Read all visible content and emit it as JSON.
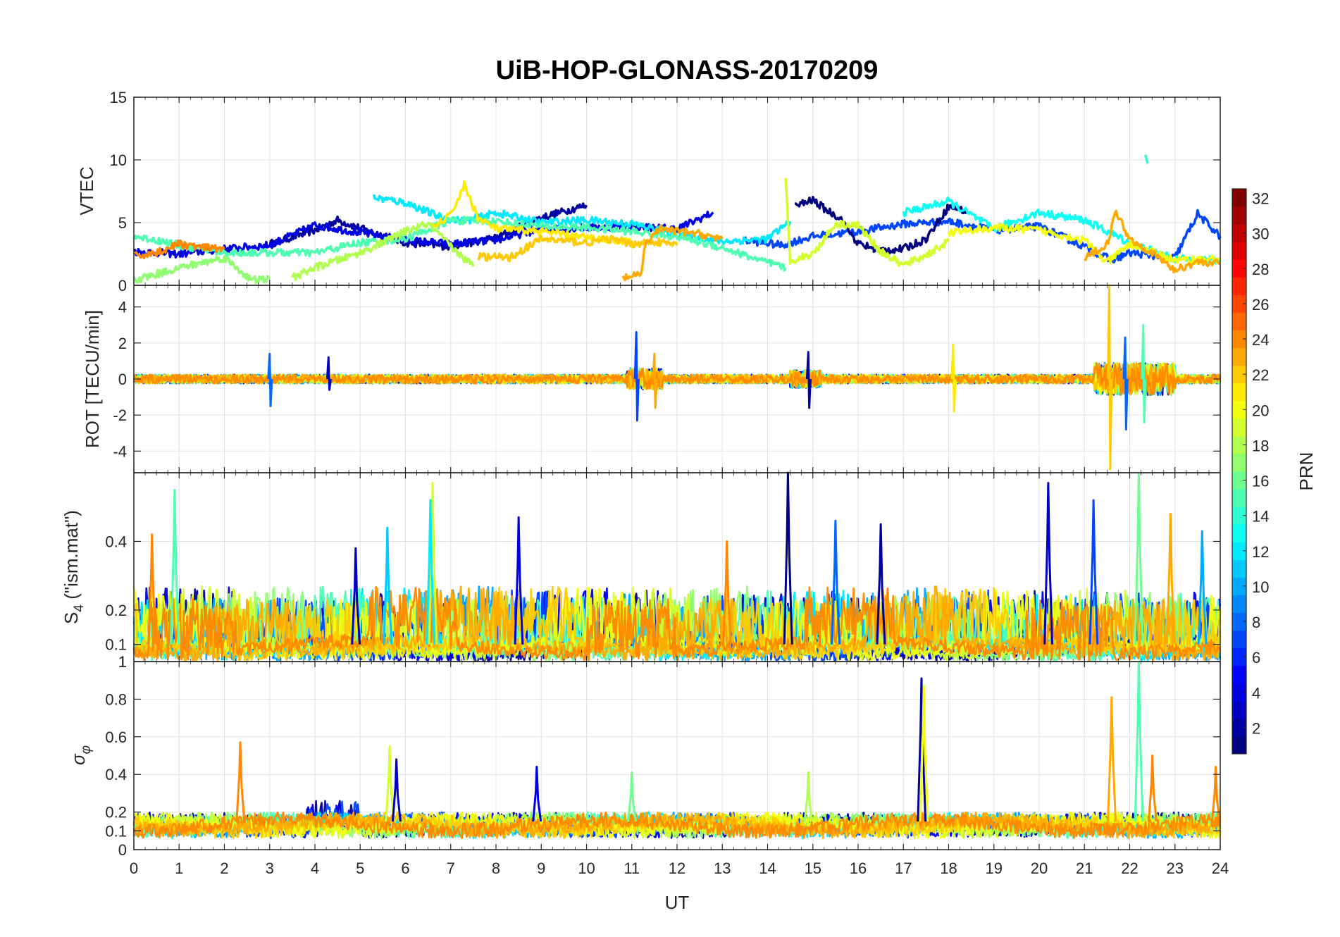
{
  "chart_data": {
    "type": "line",
    "title": "UiB-HOP-GLONASS-20170209",
    "xlabel": "UT",
    "xlim": [
      0,
      24
    ],
    "xticks": [
      0,
      1,
      2,
      3,
      4,
      5,
      6,
      7,
      8,
      9,
      10,
      11,
      12,
      13,
      14,
      15,
      16,
      17,
      18,
      19,
      20,
      21,
      22,
      23,
      24
    ],
    "grid": true,
    "panels": [
      {
        "id": "vtec",
        "ylabel": "VTEC",
        "ylim": [
          0,
          15
        ],
        "yticks": [
          0,
          5,
          10,
          15
        ],
        "series_hint": [
          {
            "prn": 2,
            "points": [
              [
                3.0,
                3.3
              ],
              [
                4.0,
                4.4
              ],
              [
                4.5,
                5.2
              ],
              [
                5.2,
                4.3
              ],
              [
                6.0,
                3.4
              ],
              [
                7.0,
                3.1
              ],
              [
                8.0,
                3.8
              ],
              [
                9.0,
                5.4
              ],
              [
                10.0,
                6.4
              ]
            ]
          },
          {
            "prn": 4,
            "points": [
              [
                0.0,
                2.7
              ],
              [
                1.0,
                2.5
              ],
              [
                2.0,
                2.9
              ],
              [
                3.0,
                3.2
              ],
              [
                4.0,
                4.8
              ],
              [
                5.0,
                4.2
              ],
              [
                6.0,
                3.6
              ],
              [
                7.0,
                3.3
              ],
              [
                8.0,
                3.6
              ],
              [
                9.0,
                4.5
              ],
              [
                10.0,
                4.6
              ],
              [
                11.0,
                4.7
              ],
              [
                12.0,
                4.5
              ],
              [
                12.8,
                5.8
              ]
            ]
          },
          {
            "prn": 7,
            "points": [
              [
                13.5,
                3.6
              ],
              [
                14.3,
                3.2
              ],
              [
                15.0,
                3.9
              ],
              [
                16.0,
                4.3
              ],
              [
                17.0,
                4.9
              ],
              [
                18.0,
                5.1
              ],
              [
                19.0,
                4.4
              ],
              [
                20.0,
                4.7
              ],
              [
                21.0,
                3.1
              ],
              [
                21.6,
                2.0
              ],
              [
                22.0,
                2.6
              ],
              [
                23.0,
                2.2
              ],
              [
                23.5,
                5.7
              ],
              [
                24.0,
                3.9
              ]
            ]
          },
          {
            "prn": 1,
            "points": [
              [
                14.6,
                6.3
              ],
              [
                15.0,
                6.8
              ],
              [
                15.3,
                6.0
              ],
              [
                15.6,
                5.4
              ],
              [
                16.0,
                3.3
              ],
              [
                16.5,
                2.8
              ],
              [
                17.0,
                2.9
              ],
              [
                17.5,
                3.7
              ],
              [
                18.0,
                6.3
              ],
              [
                18.4,
                5.9
              ]
            ]
          },
          {
            "prn": 12,
            "points": [
              [
                5.3,
                7.0
              ],
              [
                6.0,
                6.6
              ],
              [
                6.8,
                5.4
              ],
              [
                7.3,
                5.1
              ],
              [
                8.0,
                5.8
              ],
              [
                9.0,
                5.0
              ],
              [
                10.0,
                5.2
              ],
              [
                11.0,
                4.9
              ],
              [
                12.0,
                4.1
              ],
              [
                13.0,
                3.5
              ],
              [
                14.0,
                3.7
              ],
              [
                14.5,
                5.1
              ]
            ]
          },
          {
            "prn": 13,
            "points": [
              [
                17.0,
                5.8
              ],
              [
                18.0,
                6.7
              ],
              [
                19.0,
                4.5
              ],
              [
                20.0,
                5.8
              ],
              [
                21.0,
                5.2
              ],
              [
                22.0,
                3.4
              ],
              [
                23.0,
                2.1
              ],
              [
                24.0,
                2.0
              ]
            ]
          },
          {
            "prn": 15,
            "points": [
              [
                0.0,
                3.9
              ],
              [
                0.5,
                3.6
              ],
              [
                1.0,
                3.2
              ],
              [
                2.0,
                2.6
              ],
              [
                3.0,
                2.6
              ],
              [
                4.0,
                2.6
              ],
              [
                4.5,
                3.0
              ],
              [
                5.0,
                3.4
              ],
              [
                6.0,
                3.7
              ],
              [
                7.0,
                5.2
              ],
              [
                8.0,
                5.1
              ],
              [
                9.0,
                4.7
              ],
              [
                10.0,
                4.6
              ],
              [
                11.0,
                4.3
              ],
              [
                12.0,
                3.9
              ],
              [
                13.0,
                3.0
              ],
              [
                14.0,
                1.8
              ],
              [
                14.4,
                1.4
              ]
            ]
          },
          {
            "prn": 17,
            "points": [
              [
                0.0,
                0.4
              ],
              [
                0.5,
                0.9
              ],
              [
                1.0,
                1.4
              ],
              [
                1.5,
                1.8
              ],
              [
                2.0,
                2.2
              ],
              [
                2.4,
                1.0
              ],
              [
                2.6,
                0.4
              ],
              [
                3.0,
                0.5
              ]
            ]
          },
          {
            "prn": 18,
            "points": [
              [
                3.5,
                0.6
              ],
              [
                4.0,
                1.4
              ],
              [
                4.5,
                2.0
              ],
              [
                5.0,
                2.6
              ],
              [
                5.5,
                3.4
              ],
              [
                6.0,
                4.3
              ],
              [
                6.5,
                4.9
              ],
              [
                7.0,
                3.1
              ],
              [
                7.5,
                1.5
              ]
            ]
          },
          {
            "prn": 19,
            "points": [
              [
                14.4,
                8.5
              ],
              [
                14.5,
                2.0
              ],
              [
                15.0,
                2.5
              ],
              [
                15.5,
                4.9
              ],
              [
                16.0,
                4.8
              ],
              [
                16.5,
                2.7
              ],
              [
                17.0,
                1.6
              ],
              [
                17.5,
                2.4
              ],
              [
                18.0,
                3.5
              ]
            ]
          },
          {
            "prn": 21,
            "points": [
              [
                6.6,
                4.6
              ],
              [
                7.0,
                5.6
              ],
              [
                7.3,
                8.0
              ],
              [
                7.6,
                5.4
              ],
              [
                8.0,
                4.5
              ],
              [
                9.0,
                4.3
              ],
              [
                10.0,
                3.8
              ],
              [
                11.0,
                3.5
              ]
            ]
          },
          {
            "prn": 20,
            "points": [
              [
                18.0,
                4.2
              ],
              [
                19.0,
                4.6
              ],
              [
                20.0,
                4.4
              ],
              [
                21.0,
                3.6
              ],
              [
                21.5,
                1.8
              ],
              [
                22.0,
                3.3
              ],
              [
                23.0,
                2.0
              ],
              [
                24.0,
                2.1
              ]
            ]
          },
          {
            "prn": 22,
            "points": [
              [
                7.6,
                2.3
              ],
              [
                8.3,
                2.2
              ],
              [
                9.0,
                3.7
              ],
              [
                10.0,
                3.4
              ],
              [
                10.5,
                3.7
              ],
              [
                11.0,
                3.3
              ],
              [
                11.5,
                3.5
              ],
              [
                12.0,
                3.2
              ]
            ]
          },
          {
            "prn": 23,
            "points": [
              [
                10.8,
                0.6
              ],
              [
                11.2,
                0.8
              ],
              [
                11.3,
                3.3
              ],
              [
                11.6,
                4.5
              ],
              [
                12.0,
                4.3
              ],
              [
                12.5,
                4.1
              ],
              [
                13.0,
                3.7
              ]
            ]
          },
          {
            "prn": 24,
            "points": [
              [
                0.0,
                2.3
              ],
              [
                0.5,
                2.6
              ],
              [
                1.0,
                3.3
              ],
              [
                1.5,
                3.0
              ],
              [
                2.0,
                2.9
              ]
            ]
          },
          {
            "prn": 23,
            "points": [
              [
                21.0,
                2.1
              ],
              [
                21.5,
                3.3
              ],
              [
                21.7,
                5.9
              ],
              [
                22.0,
                3.7
              ],
              [
                22.5,
                2.6
              ],
              [
                23.0,
                1.2
              ],
              [
                23.5,
                1.9
              ],
              [
                24.0,
                1.7
              ]
            ]
          },
          {
            "prn": 14,
            "points": [
              [
                22.35,
                10.4
              ],
              [
                22.4,
                9.7
              ]
            ]
          }
        ]
      },
      {
        "id": "rot",
        "ylabel": "ROT [TECU/min]",
        "ylim": [
          -5.2,
          5.2
        ],
        "yticks": [
          -4,
          -2,
          0,
          2,
          4
        ],
        "spikes": [
          {
            "t": 3.0,
            "min": -1.5,
            "max": 1.4,
            "prn": 8
          },
          {
            "t": 4.3,
            "min": -0.6,
            "max": 1.2,
            "prn": 3
          },
          {
            "t": 11.1,
            "min": -2.3,
            "max": 2.6,
            "prn": 7
          },
          {
            "t": 11.5,
            "min": -1.6,
            "max": 1.4,
            "prn": 23
          },
          {
            "t": 14.9,
            "min": -1.6,
            "max": 1.5,
            "prn": 2
          },
          {
            "t": 18.1,
            "min": -1.8,
            "max": 1.9,
            "prn": 21
          },
          {
            "t": 21.55,
            "min": -5.0,
            "max": 5.2,
            "prn": 22
          },
          {
            "t": 21.9,
            "min": -2.8,
            "max": 2.3,
            "prn": 8
          },
          {
            "t": 22.3,
            "min": -2.4,
            "max": 3.0,
            "prn": 15
          }
        ]
      },
      {
        "id": "s4",
        "ylabel_main": "S",
        "ylabel_sub": "4",
        "ylabel_rest": " (\"ism.mat\")",
        "ylim": [
          0.05,
          0.6
        ],
        "yticks": [
          0.1,
          0.2,
          0.4
        ],
        "top_label": "1",
        "spikes": [
          {
            "t": 0.4,
            "v": 0.42,
            "prn": 24
          },
          {
            "t": 0.9,
            "v": 0.55,
            "prn": 15
          },
          {
            "t": 4.9,
            "v": 0.38,
            "prn": 3
          },
          {
            "t": 5.6,
            "v": 0.44,
            "prn": 11
          },
          {
            "t": 6.6,
            "v": 0.57,
            "prn": 19
          },
          {
            "t": 6.55,
            "v": 0.52,
            "prn": 12
          },
          {
            "t": 8.5,
            "v": 0.47,
            "prn": 4
          },
          {
            "t": 13.1,
            "v": 0.4,
            "prn": 24
          },
          {
            "t": 14.45,
            "v": 0.6,
            "prn": 1
          },
          {
            "t": 15.5,
            "v": 0.46,
            "prn": 8
          },
          {
            "t": 16.5,
            "v": 0.45,
            "prn": 2
          },
          {
            "t": 20.2,
            "v": 0.57,
            "prn": 3
          },
          {
            "t": 21.2,
            "v": 0.52,
            "prn": 7
          },
          {
            "t": 22.2,
            "v": 0.6,
            "prn": 16
          },
          {
            "t": 22.9,
            "v": 0.48,
            "prn": 23
          },
          {
            "t": 23.6,
            "v": 0.43,
            "prn": 10
          }
        ]
      },
      {
        "id": "sigma",
        "ylabel": "σφ",
        "ylim": [
          0,
          1
        ],
        "yticks": [
          0,
          0.1,
          0.2,
          0.4,
          0.6,
          0.8,
          1
        ],
        "spikes": [
          {
            "t": 2.35,
            "v": 0.57,
            "prn": 24
          },
          {
            "t": 5.65,
            "v": 0.55,
            "prn": 19
          },
          {
            "t": 5.8,
            "v": 0.48,
            "prn": 3
          },
          {
            "t": 8.9,
            "v": 0.44,
            "prn": 4
          },
          {
            "t": 11.0,
            "v": 0.41,
            "prn": 16
          },
          {
            "t": 14.9,
            "v": 0.41,
            "prn": 18
          },
          {
            "t": 17.4,
            "v": 0.91,
            "prn": 2
          },
          {
            "t": 17.45,
            "v": 0.87,
            "prn": 20
          },
          {
            "t": 21.6,
            "v": 0.81,
            "prn": 23
          },
          {
            "t": 22.2,
            "v": 1.0,
            "prn": 15
          },
          {
            "t": 22.5,
            "v": 0.5,
            "prn": 24
          },
          {
            "t": 23.9,
            "v": 0.44,
            "prn": 24
          }
        ]
      }
    ],
    "colorbar": {
      "label": "PRN",
      "min": 1,
      "max": 32,
      "ticks": [
        2,
        4,
        6,
        8,
        10,
        12,
        14,
        16,
        18,
        20,
        22,
        24,
        26,
        28,
        30,
        32
      ],
      "colormap": "jet"
    }
  }
}
